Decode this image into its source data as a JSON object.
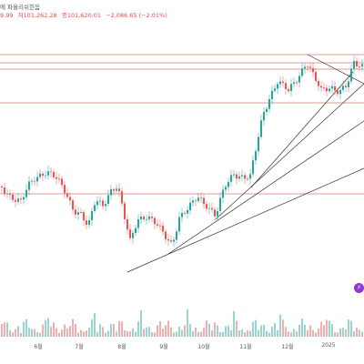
{
  "legend": {
    "line1": "에 파올리쉬힌음",
    "line2_parts": [
      "9.99",
      "저101,262.28",
      "종101,620.01",
      "−2,086.65 (−2.01%)"
    ]
  },
  "x_axis": {
    "labels": [
      "6월",
      "7월",
      "8월",
      "9월",
      "10월",
      "11월",
      "12월",
      "2025"
    ]
  },
  "colors": {
    "up": "#26a69a",
    "down": "#ef5350",
    "hline": "#e57373",
    "trendline": "#333333",
    "volume": "#ef9a9a",
    "icon": "#8c3bd6"
  },
  "icons": {
    "drawing_tool": "lightning-icon"
  },
  "chart_data": {
    "type": "candlestick",
    "title": "",
    "xlabel": "",
    "ylabel": "",
    "x_tick_labels": [
      "6월",
      "7월",
      "8월",
      "9월",
      "10월",
      "11월",
      "12월",
      "2025"
    ],
    "trend_note": "uptrend from Aug–Sep lows to Dec high; daily candles with volume histogram",
    "grid": false,
    "legend_position": "top-left"
  }
}
